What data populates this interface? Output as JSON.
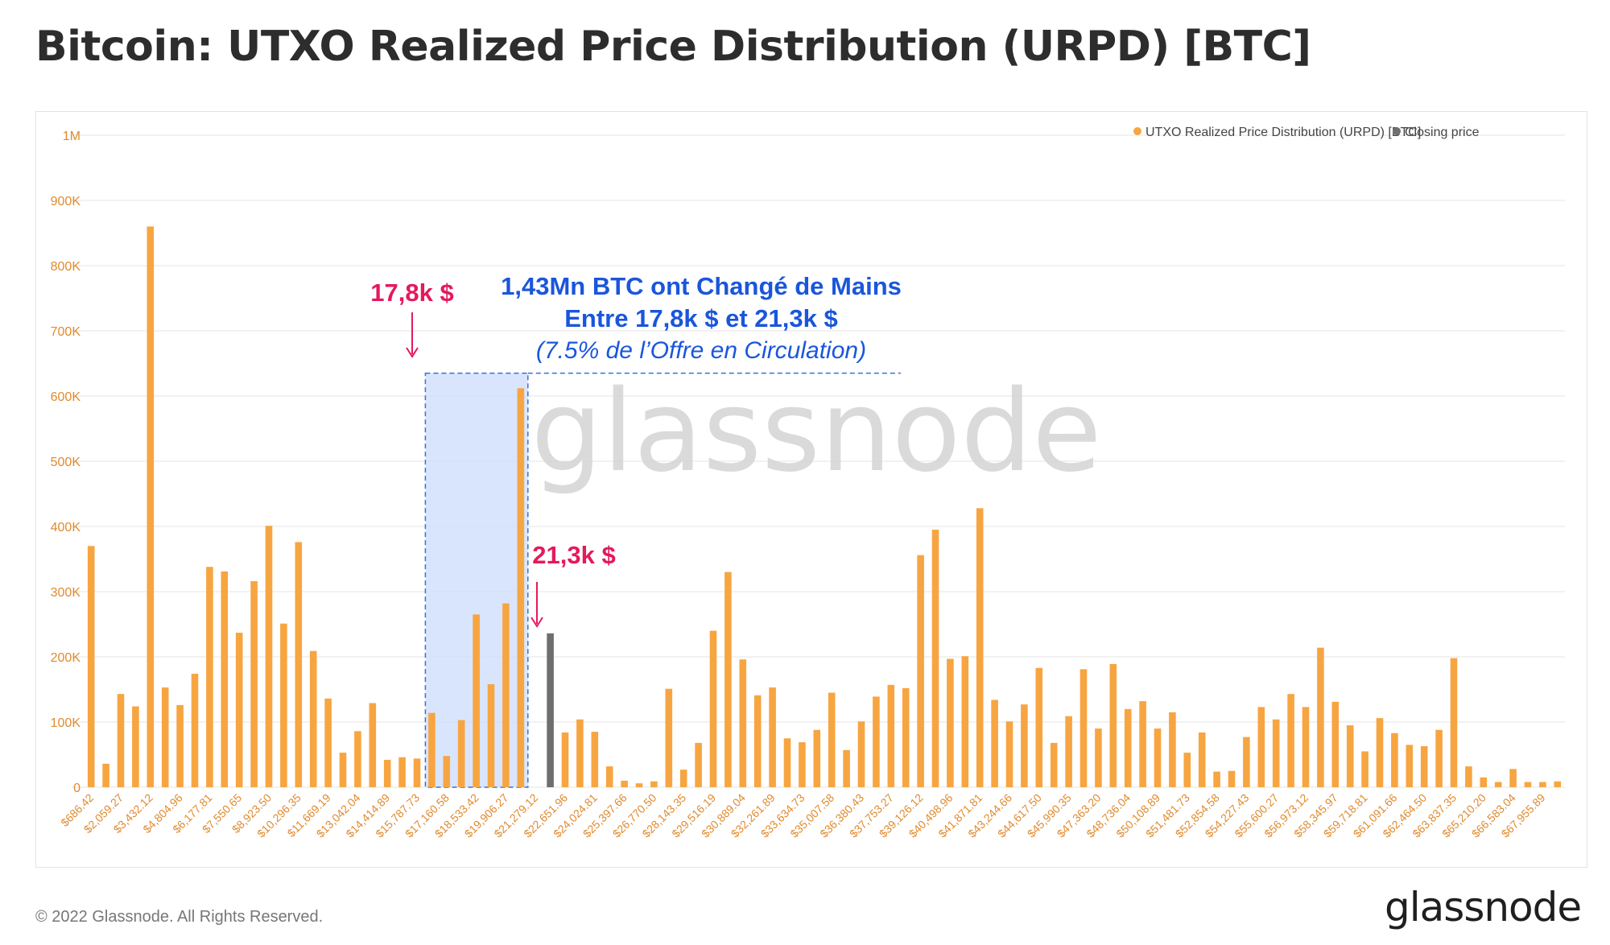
{
  "title": "Bitcoin: UTXO Realized Price Distribution (URPD) [BTC]",
  "footer": {
    "copyright": "© 2022 Glassnode. All Rights Reserved.",
    "logo": "glassnode"
  },
  "watermark": "glassnode",
  "annotations": {
    "left_price": "17,8k $",
    "right_price": "21,3k $",
    "box_line1": "1,43Mn BTC ont Changé de Mains",
    "box_line2": "Entre 17,8k $ et 21,3k $",
    "box_line3": "(7.5% de l’Offre en Circulation)"
  },
  "colors": {
    "bar": "#f7a541",
    "closing": "#6e6e6e",
    "axis_text": "#e08a2e",
    "highlight_fill": "#cfdefd",
    "highlight_border": "#3b6fd6",
    "annotation_red": "#e5195c",
    "annotation_blue": "#1a56db",
    "grid": "#e6e6e6",
    "frame": "#e3e3e3"
  },
  "chart_data": {
    "type": "bar",
    "ylim": [
      0,
      1000000
    ],
    "ytick_labels": [
      "0",
      "100K",
      "200K",
      "300K",
      "400K",
      "500K",
      "600K",
      "700K",
      "800K",
      "900K",
      "1M"
    ],
    "legend": [
      {
        "label": "UTXO Realized Price Distribution (URPD) [BTC]",
        "color": "#f7a541"
      },
      {
        "label": "Closing price",
        "color": "#6e6e6e"
      }
    ],
    "closing_index": 31,
    "xtick_labels": [
      "$686.42",
      "$2,059.27",
      "$3,432.12",
      "$4,804.96",
      "$6,177.81",
      "$7,550.65",
      "$8,923.50",
      "$10,296.35",
      "$11,669.19",
      "$13,042.04",
      "$14,414.89",
      "$15,787.73",
      "$17,160.58",
      "$18,533.42",
      "$19,906.27",
      "$21,279.12",
      "$22,651.96",
      "$24,024.81",
      "$25,397.66",
      "$26,770.50",
      "$28,143.35",
      "$29,516.19",
      "$30,889.04",
      "$32,261.89",
      "$33,634.73",
      "$35,007.58",
      "$36,380.43",
      "$37,753.27",
      "$39,126.12",
      "$40,498.96",
      "$41,871.81",
      "$43,244.66",
      "$44,617.50",
      "$45,990.35",
      "$47,363.20",
      "$48,736.04",
      "$50,108.89",
      "$51,481.73",
      "$52,854.58",
      "$54,227.43",
      "$55,600.27",
      "$56,973.12",
      "$58,345.97",
      "$59,718.81",
      "$61,091.66",
      "$62,464.50",
      "$63,837.35",
      "$65,210.20",
      "$66,583.04",
      "$67,955.89"
    ],
    "values": [
      370000,
      36000,
      143000,
      124000,
      860000,
      153000,
      126000,
      174000,
      338000,
      331000,
      237000,
      316000,
      401000,
      251000,
      376000,
      209000,
      136000,
      53000,
      86000,
      129000,
      42000,
      46000,
      44000,
      114000,
      48000,
      103000,
      265000,
      158000,
      282000,
      612000,
      0,
      236000,
      84000,
      104000,
      85000,
      32000,
      10000,
      6000,
      9000,
      151000,
      27000,
      68000,
      240000,
      330000,
      196000,
      141000,
      153000,
      75000,
      69000,
      88000,
      145000,
      57000,
      101000,
      139000,
      157000,
      152000,
      356000,
      395000,
      197000,
      201000,
      428000,
      134000,
      101000,
      127000,
      183000,
      68000,
      109000,
      181000,
      90000,
      189000,
      120000,
      132000,
      90000,
      115000,
      53000,
      84000,
      24000,
      25000,
      77000,
      123000,
      104000,
      143000,
      123000,
      214000,
      131000,
      95000,
      55000,
      106000,
      83000,
      65000,
      63000,
      88000,
      198000,
      32000,
      15000,
      8000,
      28000,
      8000,
      8000,
      9000
    ]
  }
}
